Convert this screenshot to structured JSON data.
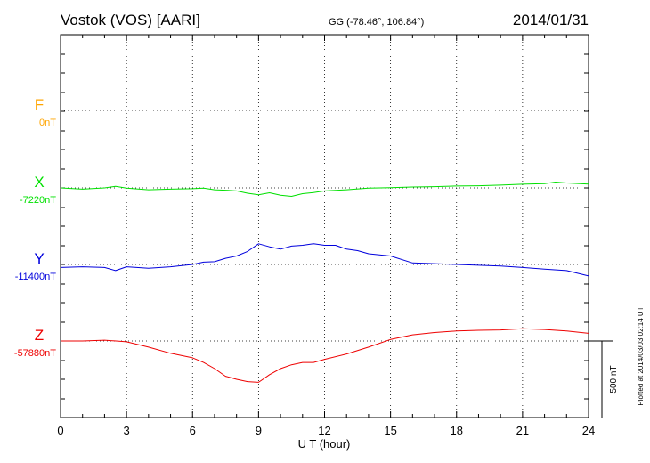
{
  "header": {
    "station": "Vostok (VOS)  [AARI]",
    "coords": "GG (-78.46°, 106.84°)",
    "date": "2014/01/31"
  },
  "footer": {
    "plotted": "Plotted at 2014/03/03 02:14 UT"
  },
  "scale_bar": {
    "label": "500 nT",
    "value_nT": 500
  },
  "chart_data": {
    "type": "line",
    "xlabel": "U T (hour)",
    "xlim": [
      0,
      24
    ],
    "xticks": [
      0,
      3,
      6,
      9,
      12,
      15,
      18,
      21,
      24
    ],
    "grid": true,
    "series": [
      {
        "name": "F",
        "baseline_label": "0nT",
        "color": "#ffa500",
        "x": [],
        "values": []
      },
      {
        "name": "X",
        "baseline_label": "-7220nT",
        "color": "#00e000",
        "x": [
          0,
          1,
          2,
          2.5,
          3,
          4,
          5,
          6,
          6.5,
          7,
          7.5,
          8,
          8.5,
          9,
          9.5,
          10,
          10.5,
          11,
          11.5,
          12,
          13,
          14,
          15,
          16,
          17,
          18,
          19,
          20,
          21,
          22,
          22.5,
          23,
          24
        ],
        "values": [
          -7220,
          -7228,
          -7220,
          -7210,
          -7222,
          -7232,
          -7228,
          -7225,
          -7222,
          -7232,
          -7235,
          -7240,
          -7255,
          -7265,
          -7252,
          -7268,
          -7275,
          -7258,
          -7250,
          -7240,
          -7232,
          -7222,
          -7218,
          -7214,
          -7212,
          -7208,
          -7206,
          -7202,
          -7196,
          -7192,
          -7182,
          -7188,
          -7195
        ]
      },
      {
        "name": "Y",
        "baseline_label": "-11400nT",
        "color": "#0000dd",
        "x": [
          0,
          1,
          2,
          2.5,
          3,
          4,
          5,
          6,
          6.5,
          7,
          7.5,
          8,
          8.5,
          9,
          9.5,
          10,
          10.5,
          11,
          11.5,
          12,
          12.5,
          13,
          13.5,
          14,
          15,
          16,
          17,
          18,
          19,
          20,
          21,
          22,
          23,
          24
        ],
        "values": [
          -11420,
          -11415,
          -11420,
          -11440,
          -11415,
          -11425,
          -11415,
          -11400,
          -11385,
          -11382,
          -11360,
          -11345,
          -11315,
          -11265,
          -11285,
          -11300,
          -11280,
          -11275,
          -11265,
          -11275,
          -11275,
          -11300,
          -11310,
          -11330,
          -11345,
          -11390,
          -11395,
          -11400,
          -11405,
          -11410,
          -11420,
          -11430,
          -11440,
          -11475
        ]
      },
      {
        "name": "Z",
        "baseline_label": "-57880nT",
        "color": "#ee0000",
        "x": [
          0,
          1,
          2,
          3,
          4,
          5,
          6,
          6.5,
          7,
          7.5,
          8,
          8.5,
          9,
          9.5,
          10,
          10.5,
          11,
          11.5,
          12,
          13,
          14,
          15,
          16,
          17,
          18,
          19,
          20,
          21,
          22,
          23,
          24
        ],
        "values": [
          -57880,
          -57880,
          -57875,
          -57885,
          -57920,
          -57960,
          -57990,
          -58020,
          -58060,
          -58110,
          -58130,
          -58145,
          -58150,
          -58100,
          -58060,
          -58035,
          -58020,
          -58020,
          -58000,
          -57965,
          -57920,
          -57870,
          -57840,
          -57825,
          -57815,
          -57810,
          -57808,
          -57800,
          -57805,
          -57815,
          -57830
        ]
      }
    ]
  }
}
